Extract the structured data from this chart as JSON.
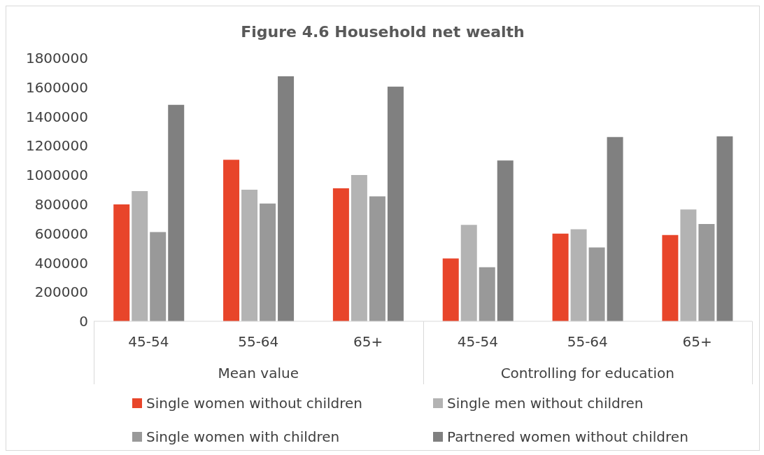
{
  "chart_data": {
    "type": "bar",
    "title": "Figure 4.6 Household net wealth",
    "categories": [
      "45-54",
      "55-64",
      "65+",
      "45-54",
      "55-64",
      "65+"
    ],
    "annotations": [
      "Mean value",
      "Controlling for education"
    ],
    "series": [
      {
        "name": "Single women without children",
        "color": "#e8452a",
        "values": [
          800000,
          1105000,
          910000,
          430000,
          600000,
          590000
        ]
      },
      {
        "name": "Single men without children",
        "color": "#b3b3b3",
        "values": [
          890000,
          900000,
          1000000,
          660000,
          630000,
          765000
        ]
      },
      {
        "name": "Single women with children",
        "color": "#999999",
        "values": [
          610000,
          805000,
          855000,
          370000,
          505000,
          665000
        ]
      },
      {
        "name": "Partnered women without children",
        "color": "#808080",
        "values": [
          1480000,
          1675000,
          1605000,
          1100000,
          1260000,
          1265000
        ]
      }
    ],
    "ylim": [
      0,
      1800000
    ],
    "yticks": [
      0,
      200000,
      400000,
      600000,
      800000,
      1000000,
      1200000,
      1400000,
      1600000,
      1800000
    ],
    "grid": false,
    "legend": "bottom"
  }
}
